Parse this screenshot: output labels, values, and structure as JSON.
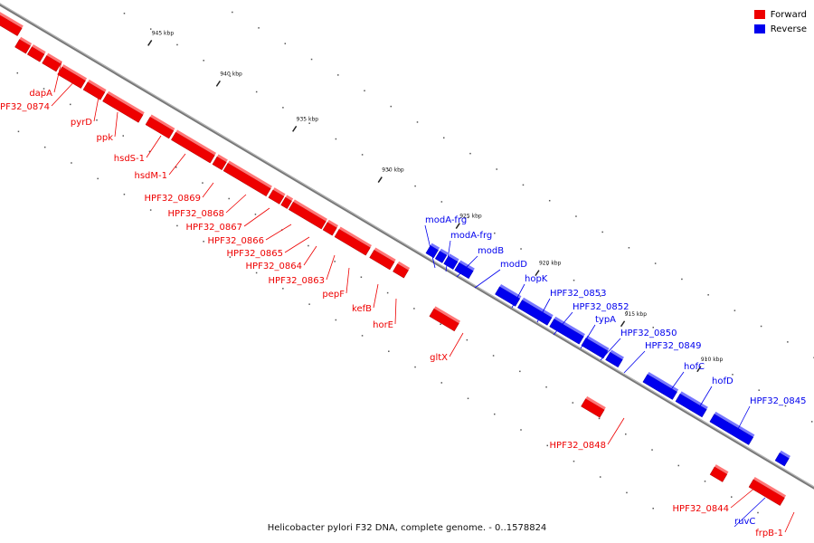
{
  "legend": {
    "items": [
      {
        "label": "Forward",
        "color": "#ee0000"
      },
      {
        "label": "Reverse",
        "color": "#0000ee"
      }
    ]
  },
  "caption": "Helicobacter pylori F32 DNA, complete genome. - 0..1578824",
  "colors": {
    "forward": "#ee0000",
    "reverse": "#0000ee",
    "axis": "#777777",
    "tick": "#222222"
  },
  "ticks": [
    "945 kbp",
    "940 kbp",
    "935 kbp",
    "930 kbp",
    "925 kbp",
    "920 kbp",
    "915 kbp",
    "910 kbp"
  ],
  "forward_labels": [
    "dapA",
    "HPF32_0874",
    "pyrD",
    "ppk",
    "hsdS-1",
    "hsdM-1",
    "HPF32_0869",
    "HPF32_0868",
    "HPF32_0867",
    "HPF32_0866",
    "HPF32_0865",
    "HPF32_0864",
    "HPF32_0863",
    "pepF",
    "kefB",
    "horE",
    "gltX",
    "HPF32_0848",
    "HPF32_0844",
    "frpB-1"
  ],
  "reverse_labels": [
    "modA-frg",
    "modA-frg",
    "modB",
    "modD",
    "hopK",
    "HPF32_0853",
    "HPF32_0852",
    "typA",
    "HPF32_0850",
    "HPF32_0849",
    "hofC",
    "hofD",
    "HPF32_0845",
    "ruvC"
  ]
}
